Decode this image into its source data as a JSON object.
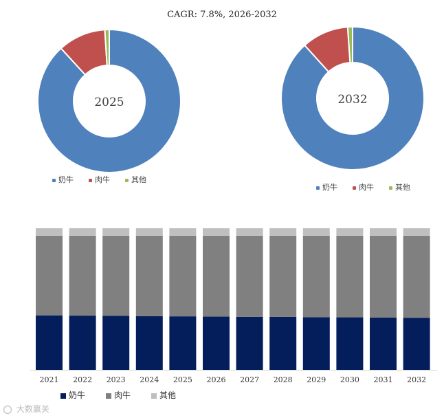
{
  "header": {
    "cagr_text": "CAGR:   7.8%, 2026-2032"
  },
  "colors": {
    "donut_milk": "#4f81bd",
    "donut_beef": "#c0504d",
    "donut_other": "#9bbb59",
    "bar_milk": "#041e5c",
    "bar_beef": "#808080",
    "bar_other": "#bfbfbf"
  },
  "watermark": "大数赢关",
  "chart_data": [
    {
      "type": "pie",
      "subtype": "donut",
      "title": "2025",
      "categories": [
        "奶牛",
        "肉牛",
        "其他"
      ],
      "values": [
        88.2,
        10.8,
        1.0
      ],
      "legend_position": "bottom"
    },
    {
      "type": "pie",
      "subtype": "donut",
      "title": "2032",
      "categories": [
        "奶牛",
        "肉牛",
        "其他"
      ],
      "values": [
        88.3,
        10.6,
        1.1
      ],
      "legend_position": "bottom"
    },
    {
      "type": "bar",
      "stacked": true,
      "normalized": true,
      "categories": [
        "2021",
        "2022",
        "2023",
        "2024",
        "2025",
        "2026",
        "2027",
        "2028",
        "2029",
        "2030",
        "2031",
        "2032"
      ],
      "series": [
        {
          "name": "奶牛",
          "values": [
            38.5,
            38.3,
            38.1,
            37.9,
            37.8,
            37.6,
            37.5,
            37.4,
            37.2,
            37.1,
            37.0,
            36.8
          ]
        },
        {
          "name": "肉牛",
          "values": [
            56.2,
            56.4,
            56.6,
            56.8,
            56.9,
            57.1,
            57.2,
            57.3,
            57.5,
            57.6,
            57.7,
            57.9
          ]
        },
        {
          "name": "其他",
          "values": [
            5.3,
            5.3,
            5.3,
            5.3,
            5.3,
            5.3,
            5.3,
            5.3,
            5.3,
            5.3,
            5.3,
            5.3
          ]
        }
      ],
      "ylim": [
        0,
        100
      ],
      "legend_position": "bottom"
    }
  ]
}
